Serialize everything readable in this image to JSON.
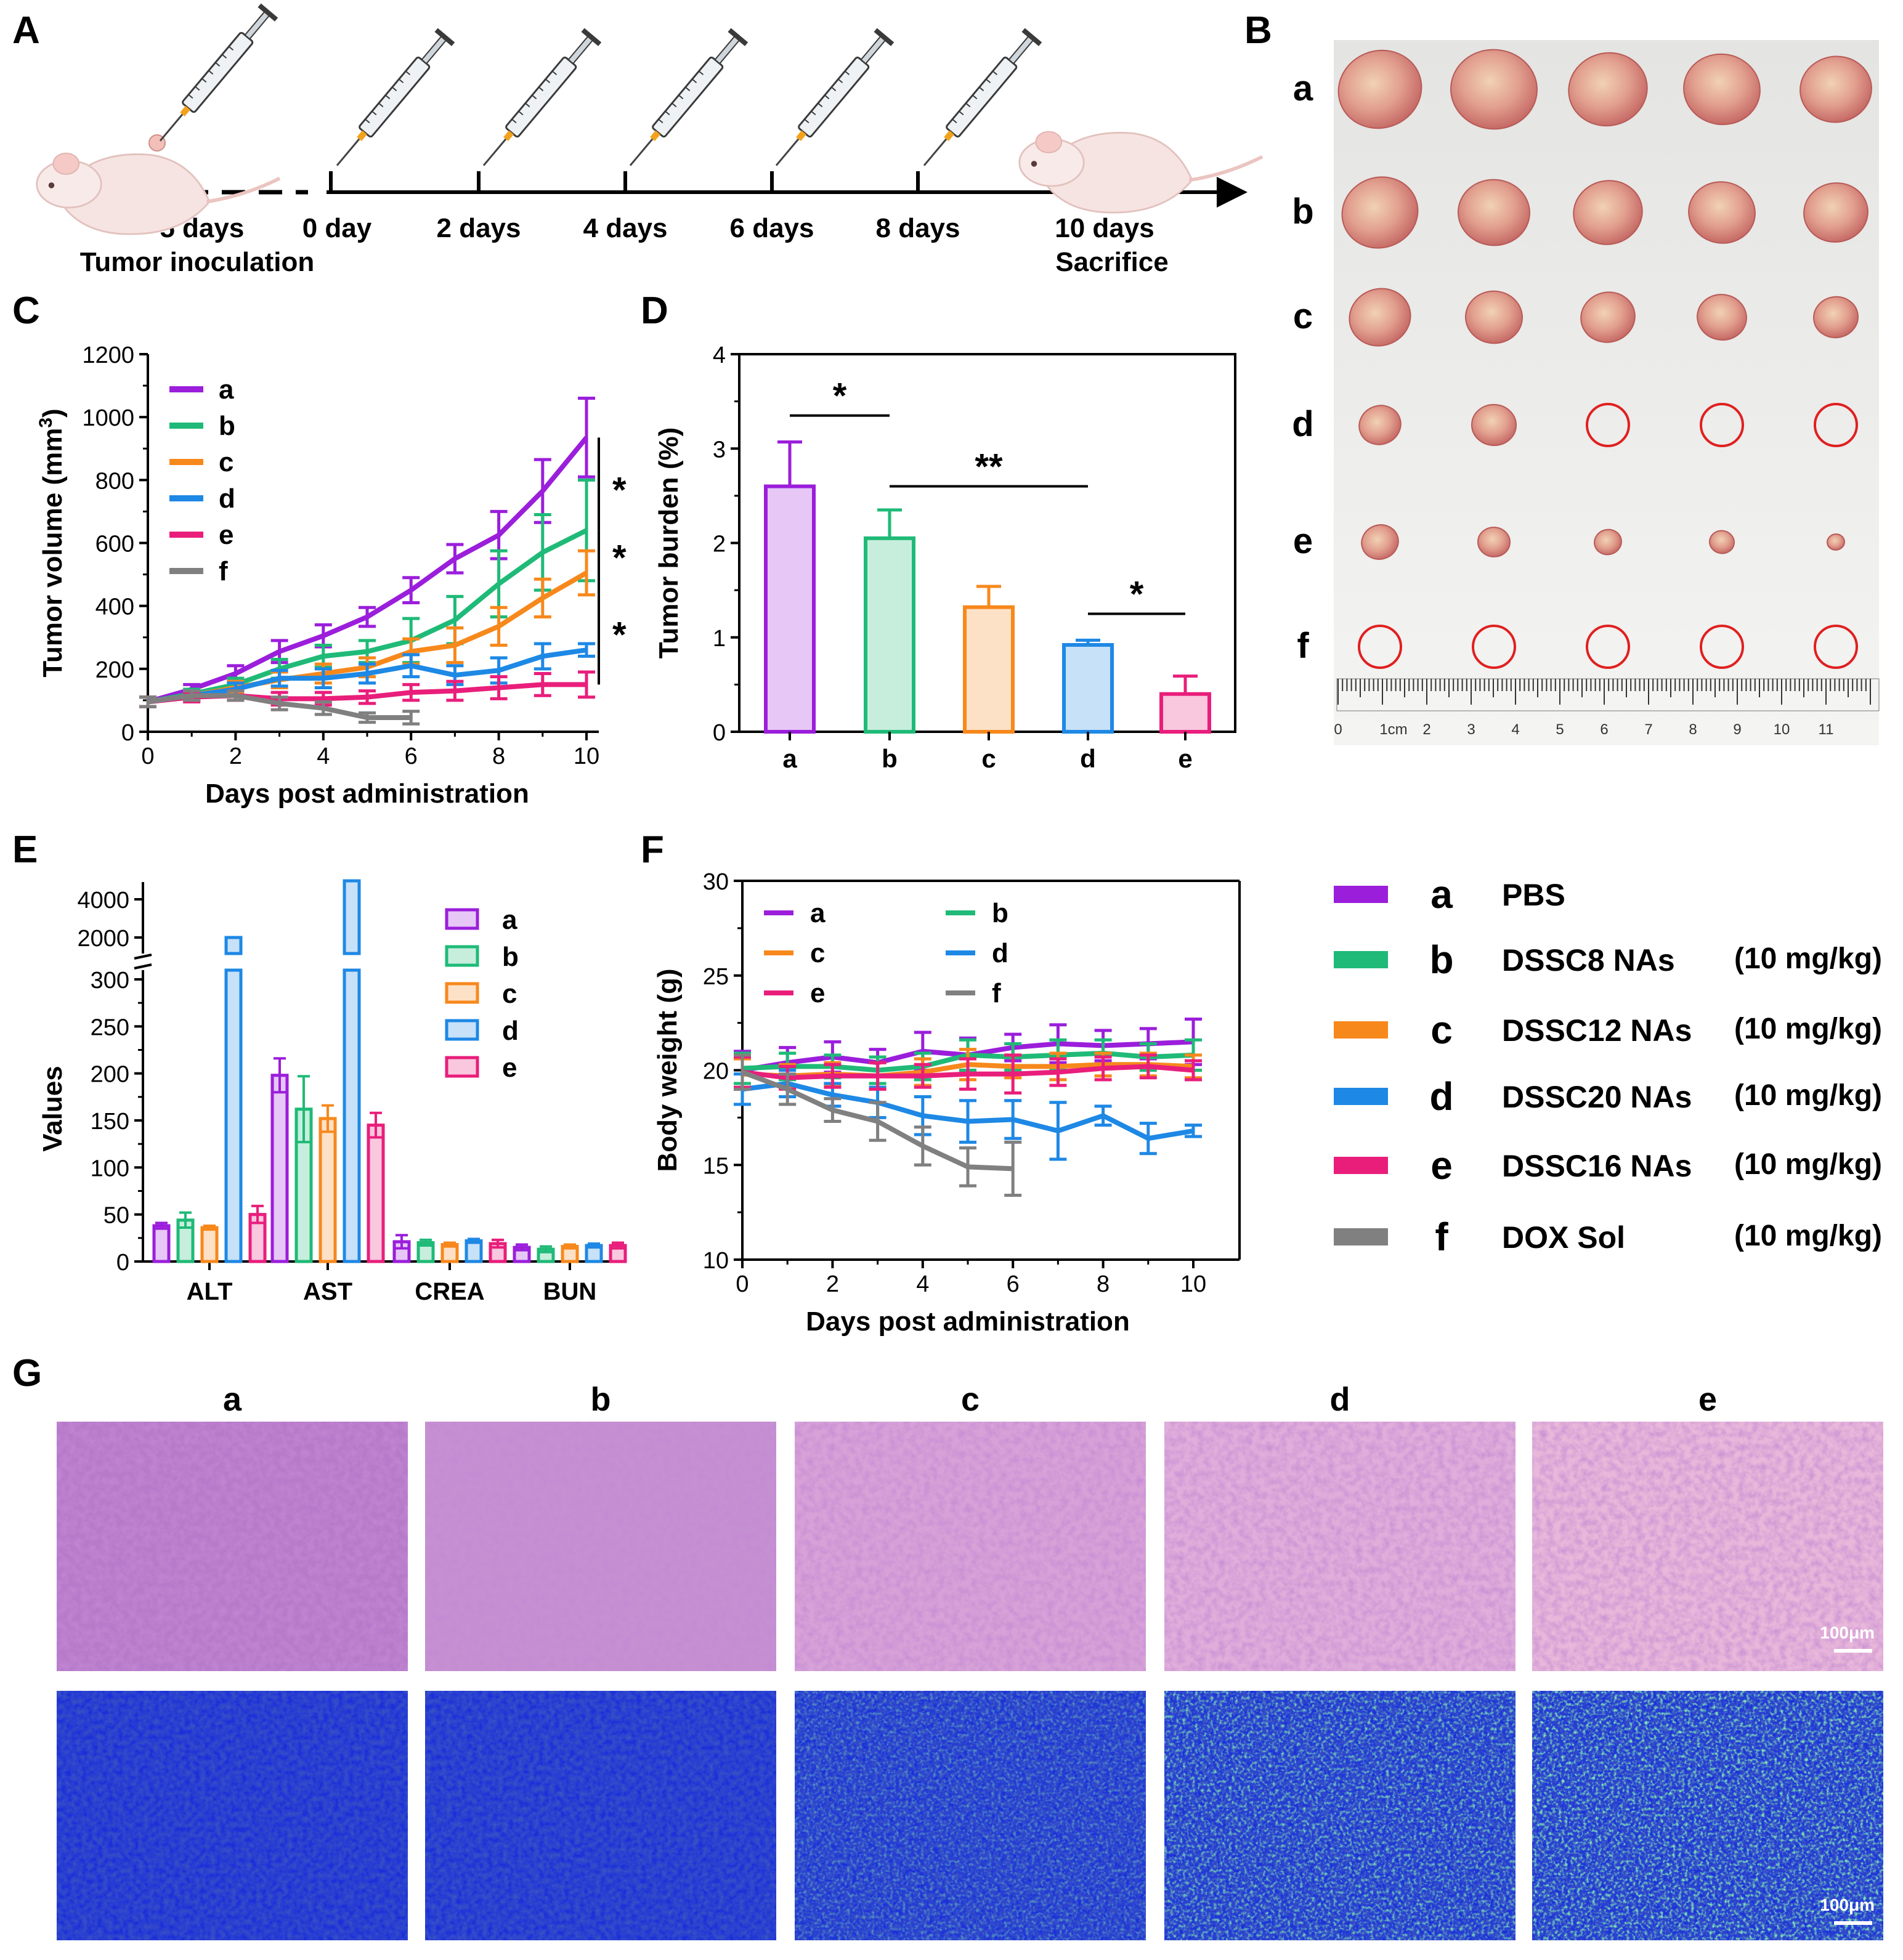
{
  "colors": {
    "a": "#9B1EDB",
    "b": "#1FBA77",
    "c": "#F7881C",
    "d": "#1E88E5",
    "e": "#E91E7B",
    "f": "#808080",
    "circle": "#E02020",
    "he_tissue": "#C98BD2",
    "tunel_bg": "#1A2FD8",
    "tunel_pos": "#3BE06A"
  },
  "panels": {
    "A": "A",
    "B": "B",
    "C": "C",
    "D": "D",
    "E": "E",
    "F": "F",
    "G": "G"
  },
  "timeline": {
    "ticks": [
      {
        "label": "−5 days"
      },
      {
        "label": "0 day"
      },
      {
        "label": "2 days"
      },
      {
        "label": "4 days"
      },
      {
        "label": "6 days"
      },
      {
        "label": "8 days"
      },
      {
        "label": "10 days"
      }
    ],
    "inoculation_label": "Tumor inoculation",
    "sacrifice_label": "Sacrifice",
    "icons": [
      "mouse-icon",
      "syringe-icon",
      "syringe-icon",
      "syringe-icon",
      "syringe-icon",
      "syringe-icon",
      "syringe-icon",
      "mouse-icon"
    ]
  },
  "photo": {
    "rows": [
      {
        "label": "a",
        "items": [
          "tumor",
          "tumor",
          "tumor",
          "tumor",
          "tumor"
        ]
      },
      {
        "label": "b",
        "items": [
          "tumor",
          "tumor",
          "tumor",
          "tumor",
          "tumor"
        ]
      },
      {
        "label": "c",
        "items": [
          "tumor",
          "tumor",
          "tumor",
          "tumor",
          "tumor"
        ]
      },
      {
        "label": "d",
        "items": [
          "tumor",
          "tumor",
          "empty",
          "empty",
          "empty"
        ]
      },
      {
        "label": "e",
        "items": [
          "tumor",
          "tumor",
          "tumor",
          "tumor",
          "tumor"
        ]
      },
      {
        "label": "f",
        "items": [
          "empty",
          "empty",
          "empty",
          "empty",
          "empty"
        ]
      }
    ],
    "ruler_labels": [
      "0",
      "1cm",
      "2",
      "3",
      "4",
      "5",
      "6",
      "7",
      "8",
      "9",
      "10",
      "11"
    ]
  },
  "legend_main": [
    {
      "key": "a",
      "name": "PBS",
      "dose": ""
    },
    {
      "key": "b",
      "name": "DSSC8 NAs",
      "dose": "(10 mg/kg)"
    },
    {
      "key": "c",
      "name": "DSSC12 NAs",
      "dose": "(10 mg/kg)"
    },
    {
      "key": "d",
      "name": "DSSC20 NAs",
      "dose": "(10 mg/kg)"
    },
    {
      "key": "e",
      "name": "DSSC16 NAs",
      "dose": "(10 mg/kg)"
    },
    {
      "key": "f",
      "name": "DOX Sol",
      "dose": "(10 mg/kg)"
    }
  ],
  "histology": {
    "columns": [
      "a",
      "b",
      "c",
      "d",
      "e"
    ],
    "scale_bar": "100μm"
  },
  "chart_data": [
    {
      "panel": "C",
      "type": "line",
      "xlabel": "Days post administration",
      "ylabel_main": "Tumor volume (mm",
      "ylabel_sup": "3",
      "ylabel_end": ")",
      "xlim": [
        0,
        10
      ],
      "ylim": [
        0,
        1200
      ],
      "xticks": [
        0,
        2,
        4,
        6,
        8,
        10
      ],
      "yticks": [
        0,
        200,
        400,
        600,
        800,
        1000,
        1200
      ],
      "significance": [
        "*",
        "*",
        "*"
      ],
      "series": [
        {
          "name": "a",
          "x": [
            0,
            1,
            2,
            3,
            4,
            5,
            6,
            7,
            8,
            9,
            10
          ],
          "y": [
            95,
            135,
            185,
            255,
            305,
            365,
            450,
            550,
            625,
            765,
            935
          ],
          "err": [
            15,
            15,
            25,
            35,
            35,
            30,
            40,
            45,
            75,
            100,
            125
          ]
        },
        {
          "name": "b",
          "x": [
            0,
            1,
            2,
            3,
            4,
            5,
            6,
            7,
            8,
            9,
            10
          ],
          "y": [
            95,
            120,
            150,
            200,
            240,
            255,
            290,
            355,
            470,
            570,
            640
          ],
          "err": [
            15,
            15,
            20,
            30,
            35,
            35,
            70,
            75,
            105,
            120,
            160
          ]
        },
        {
          "name": "c",
          "x": [
            0,
            1,
            2,
            3,
            4,
            5,
            6,
            7,
            8,
            9,
            10
          ],
          "y": [
            95,
            115,
            140,
            165,
            185,
            205,
            255,
            275,
            335,
            425,
            505
          ],
          "err": [
            15,
            15,
            20,
            25,
            30,
            30,
            40,
            55,
            60,
            60,
            70
          ]
        },
        {
          "name": "d",
          "x": [
            0,
            1,
            2,
            3,
            4,
            5,
            6,
            7,
            8,
            9,
            10
          ],
          "y": [
            95,
            115,
            135,
            170,
            170,
            185,
            210,
            180,
            195,
            240,
            260
          ],
          "err": [
            15,
            15,
            20,
            25,
            30,
            30,
            35,
            30,
            40,
            40,
            20
          ]
        },
        {
          "name": "e",
          "x": [
            0,
            1,
            2,
            3,
            4,
            5,
            6,
            7,
            8,
            9,
            10
          ],
          "y": [
            95,
            110,
            115,
            105,
            105,
            110,
            125,
            130,
            140,
            150,
            150
          ],
          "err": [
            15,
            15,
            15,
            20,
            20,
            20,
            25,
            30,
            35,
            35,
            40
          ]
        },
        {
          "name": "f",
          "x": [
            0,
            1,
            2,
            3,
            4,
            5,
            6
          ],
          "y": [
            95,
            115,
            115,
            90,
            75,
            45,
            45
          ],
          "err": [
            15,
            15,
            15,
            20,
            20,
            15,
            20
          ]
        }
      ]
    },
    {
      "panel": "D",
      "type": "bar",
      "ylabel": "Tumor burden (%)",
      "categories": [
        "a",
        "b",
        "c",
        "d",
        "e"
      ],
      "values": [
        2.6,
        2.05,
        1.32,
        0.92,
        0.4
      ],
      "err": [
        0.47,
        0.3,
        0.22,
        0.05,
        0.19
      ],
      "ylim": [
        0,
        4
      ],
      "yticks": [
        0,
        1,
        2,
        3,
        4
      ],
      "significance": [
        {
          "from": "a",
          "to": "b",
          "label": "*"
        },
        {
          "from": "b",
          "to": "d",
          "label": "**"
        },
        {
          "from": "d",
          "to": "e",
          "label": "*"
        }
      ]
    },
    {
      "panel": "E",
      "type": "bar",
      "ylabel": "Values",
      "categories": [
        "ALT",
        "AST",
        "CREA",
        "BUN"
      ],
      "yticks_low": [
        0,
        50,
        100,
        150,
        200,
        250,
        300
      ],
      "yticks_high": [
        2000,
        4000
      ],
      "series": [
        {
          "name": "a",
          "values": [
            38,
            198,
            21,
            15
          ],
          "err": [
            3,
            18,
            7,
            3
          ]
        },
        {
          "name": "b",
          "values": [
            44,
            162,
            20,
            13
          ],
          "err": [
            8,
            35,
            3,
            3
          ]
        },
        {
          "name": "c",
          "values": [
            36,
            152,
            18,
            16
          ],
          "err": [
            2,
            14,
            2,
            2
          ]
        },
        {
          "name": "d",
          "values": [
            2000,
            4800,
            22,
            17
          ],
          "err": [
            0,
            0,
            2,
            2
          ]
        },
        {
          "name": "e",
          "values": [
            50,
            145,
            19,
            17
          ],
          "err": [
            9,
            13,
            4,
            3
          ]
        }
      ]
    },
    {
      "panel": "F",
      "type": "line",
      "xlabel": "Days post administration",
      "ylabel": "Body weight (g)",
      "xlim": [
        0,
        10
      ],
      "ylim": [
        10,
        30
      ],
      "xticks": [
        0,
        2,
        4,
        6,
        8,
        10
      ],
      "yticks": [
        10,
        15,
        20,
        25,
        30
      ],
      "series": [
        {
          "name": "a",
          "x": [
            0,
            1,
            2,
            3,
            4,
            5,
            6,
            7,
            8,
            9,
            10
          ],
          "y": [
            20.0,
            20.4,
            20.7,
            20.4,
            21.0,
            20.8,
            21.2,
            21.4,
            21.3,
            21.4,
            21.5
          ],
          "err": [
            1.0,
            0.8,
            0.8,
            0.7,
            1.0,
            0.9,
            0.7,
            1.0,
            0.8,
            0.8,
            1.2
          ]
        },
        {
          "name": "b",
          "x": [
            0,
            1,
            2,
            3,
            4,
            5,
            6,
            7,
            8,
            9,
            10
          ],
          "y": [
            20.1,
            20.2,
            20.2,
            20.0,
            20.2,
            20.8,
            20.7,
            20.8,
            20.9,
            20.7,
            20.8
          ],
          "err": [
            0.8,
            0.7,
            0.6,
            0.7,
            0.7,
            0.8,
            0.7,
            0.8,
            0.7,
            0.7,
            0.8
          ]
        },
        {
          "name": "c",
          "x": [
            0,
            1,
            2,
            3,
            4,
            5,
            6,
            7,
            8,
            9,
            10
          ],
          "y": [
            19.8,
            19.7,
            19.8,
            19.7,
            19.9,
            20.3,
            20.2,
            20.2,
            20.3,
            20.3,
            20.2
          ],
          "err": [
            0.8,
            0.6,
            0.6,
            0.7,
            0.7,
            0.8,
            0.6,
            0.7,
            0.6,
            0.6,
            0.6
          ]
        },
        {
          "name": "d",
          "x": [
            0,
            1,
            2,
            3,
            4,
            5,
            6,
            7,
            8,
            9,
            10
          ],
          "y": [
            19.0,
            19.3,
            18.7,
            18.3,
            17.6,
            17.3,
            17.4,
            16.8,
            17.6,
            16.4,
            16.8
          ],
          "err": [
            0.8,
            0.7,
            0.6,
            0.8,
            1.0,
            1.1,
            1.0,
            1.5,
            0.5,
            0.8,
            0.3
          ]
        },
        {
          "name": "e",
          "x": [
            0,
            1,
            2,
            3,
            4,
            5,
            6,
            7,
            8,
            9,
            10
          ],
          "y": [
            19.9,
            19.6,
            19.7,
            19.7,
            19.7,
            19.8,
            19.8,
            19.9,
            20.1,
            20.2,
            20.0
          ],
          "err": [
            0.8,
            0.6,
            0.6,
            0.7,
            0.6,
            0.8,
            1.0,
            0.7,
            0.6,
            0.6,
            0.5
          ]
        },
        {
          "name": "f",
          "x": [
            0,
            1,
            2,
            3,
            4,
            5,
            6
          ],
          "y": [
            19.9,
            19.0,
            17.9,
            17.3,
            16.0,
            14.9,
            14.8
          ],
          "err": [
            0.9,
            0.8,
            0.6,
            1.0,
            1.0,
            1.0,
            1.4
          ]
        }
      ]
    }
  ]
}
